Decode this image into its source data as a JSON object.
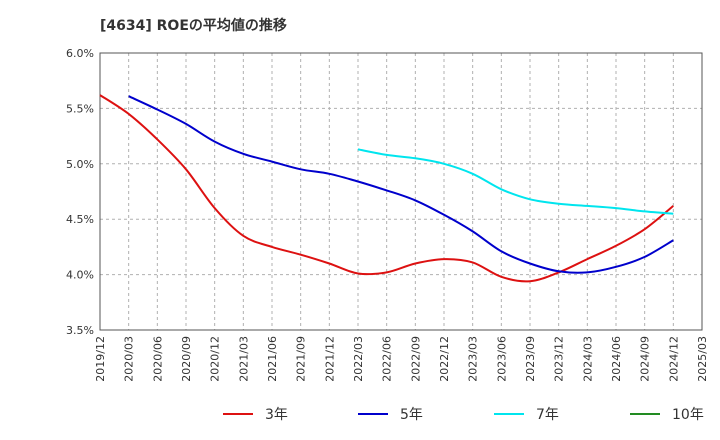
{
  "chart_data": {
    "type": "line",
    "title": "[4634]  ROEの平均値の推移",
    "xlabel": "",
    "ylabel": "",
    "ylim": [
      3.5,
      6.0
    ],
    "y_ticks": [
      "3.5%",
      "4.0%",
      "4.5%",
      "5.0%",
      "5.5%",
      "6.0%"
    ],
    "x_ticks": [
      "2019/12",
      "2020/03",
      "2020/06",
      "2020/09",
      "2020/12",
      "2021/03",
      "2021/06",
      "2021/09",
      "2021/12",
      "2022/03",
      "2022/06",
      "2022/09",
      "2022/12",
      "2023/03",
      "2023/06",
      "2023/09",
      "2023/12",
      "2024/03",
      "2024/06",
      "2024/09",
      "2024/12",
      "2025/03"
    ],
    "grid": true,
    "legend_position": "bottom",
    "series": [
      {
        "name": "3年",
        "color": "#dd1111",
        "x": [
          "2019/12",
          "2020/03",
          "2020/06",
          "2020/09",
          "2020/12",
          "2021/03",
          "2021/06",
          "2021/09",
          "2021/12",
          "2022/03",
          "2022/06",
          "2022/09",
          "2022/12",
          "2023/03",
          "2023/06",
          "2023/09",
          "2023/12",
          "2024/03",
          "2024/06",
          "2024/09",
          "2024/12"
        ],
        "values": [
          5.62,
          5.45,
          5.22,
          4.95,
          4.6,
          4.35,
          4.25,
          4.18,
          4.1,
          4.01,
          4.02,
          4.1,
          4.14,
          4.11,
          3.98,
          3.94,
          4.02,
          4.14,
          4.26,
          4.41,
          4.62
        ]
      },
      {
        "name": "5年",
        "color": "#0000cc",
        "x": [
          "2020/03",
          "2020/06",
          "2020/09",
          "2020/12",
          "2021/03",
          "2021/06",
          "2021/09",
          "2021/12",
          "2022/03",
          "2022/06",
          "2022/09",
          "2022/12",
          "2023/03",
          "2023/06",
          "2023/09",
          "2023/12",
          "2024/03",
          "2024/06",
          "2024/09",
          "2024/12"
        ],
        "values": [
          5.61,
          5.49,
          5.36,
          5.2,
          5.09,
          5.02,
          4.95,
          4.91,
          4.84,
          4.76,
          4.67,
          4.54,
          4.39,
          4.21,
          4.1,
          4.03,
          4.02,
          4.07,
          4.16,
          4.31
        ]
      },
      {
        "name": "7年",
        "color": "#00e5ee",
        "x": [
          "2022/03",
          "2022/06",
          "2022/09",
          "2022/12",
          "2023/03",
          "2023/06",
          "2023/09",
          "2023/12",
          "2024/03",
          "2024/06",
          "2024/09",
          "2024/12"
        ],
        "values": [
          5.13,
          5.08,
          5.05,
          5.0,
          4.91,
          4.77,
          4.68,
          4.64,
          4.62,
          4.6,
          4.57,
          4.55
        ]
      },
      {
        "name": "10年",
        "color": "#228b22",
        "x": [],
        "values": []
      }
    ]
  }
}
